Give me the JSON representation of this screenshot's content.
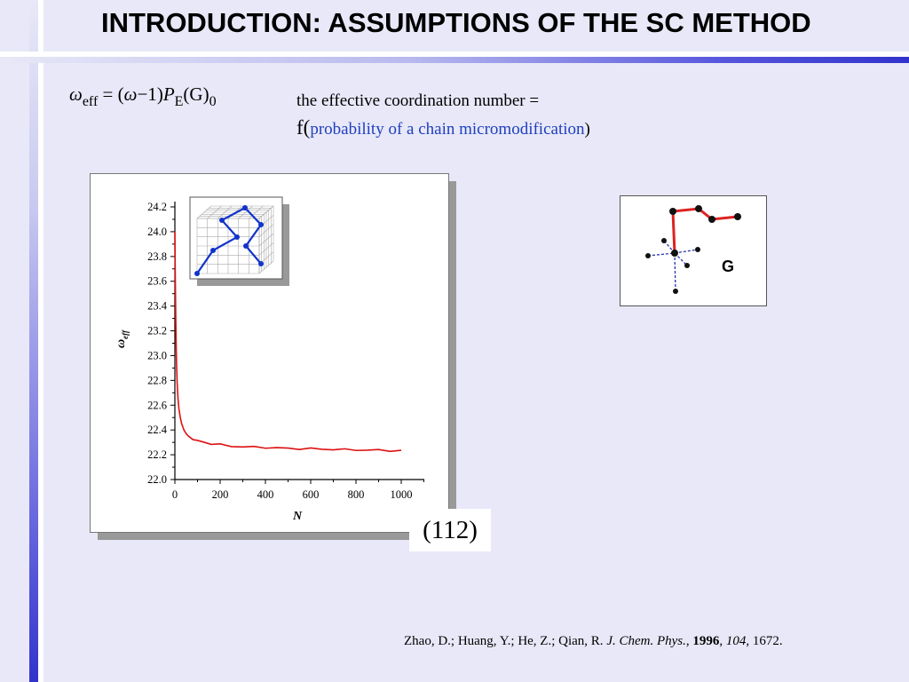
{
  "slide": {
    "title": "INTRODUCTION: ASSUMPTIONS OF THE SC METHOD"
  },
  "formula": {
    "omega": "ω",
    "eff": "eff",
    "equals": "=",
    "open_paren": "(",
    "omega2": "ω",
    "minus_one": "−1",
    "close_paren": ")",
    "P": "P",
    "E": "E",
    "G": "(G)",
    "zero": "0"
  },
  "description": {
    "line1": "the effective coordination number =",
    "f_open": "f(",
    "probability": "probability of a chain micromodification",
    "close": ")"
  },
  "equation_number": "(112)",
  "chart_data": {
    "type": "line",
    "xlabel": "N",
    "ylabel": "ω",
    "ylabel_sub": "eff",
    "xlim": [
      0,
      1000
    ],
    "ylim": [
      22.0,
      24.2
    ],
    "x_ticks": [
      "0",
      "200",
      "400",
      "600",
      "800",
      "1000"
    ],
    "y_ticks": [
      "22.0",
      "22.2",
      "22.4",
      "22.6",
      "22.8",
      "23.0",
      "23.2",
      "23.4",
      "23.6",
      "23.8",
      "24.0",
      "24.2"
    ],
    "series_color": "#dd1111",
    "series": [
      {
        "x": [
          0,
          2,
          4,
          6,
          8,
          10,
          14,
          18,
          24,
          30,
          40,
          50,
          60,
          80,
          100,
          130,
          160,
          200,
          250,
          300,
          350,
          400,
          450,
          500,
          550,
          600,
          650,
          700,
          750,
          800,
          850,
          900,
          950,
          1000
        ],
        "values": [
          24.0,
          23.6,
          23.3,
          23.05,
          22.9,
          22.78,
          22.65,
          22.57,
          22.5,
          22.45,
          22.4,
          22.37,
          22.35,
          22.33,
          22.31,
          22.3,
          22.29,
          22.28,
          22.27,
          22.265,
          22.26,
          22.26,
          22.255,
          22.25,
          22.25,
          22.248,
          22.245,
          22.245,
          22.24,
          22.24,
          22.238,
          22.236,
          22.235,
          22.232
        ]
      }
    ]
  },
  "inset": {
    "lattice_color": "#aaaaaa",
    "chain_color": "#1133cc"
  },
  "diagram": {
    "label": "G",
    "chain_color": "#dd2222",
    "bond_color": "#2233aa"
  },
  "citation": {
    "authors": "Zhao, D.; Huang, Y.; He, Z.; Qian, R. ",
    "journal": "J. Chem. Phys.",
    "sep1": ", ",
    "year": "1996",
    "sep2": ", ",
    "volume": "104",
    "pages": ", 1672."
  }
}
